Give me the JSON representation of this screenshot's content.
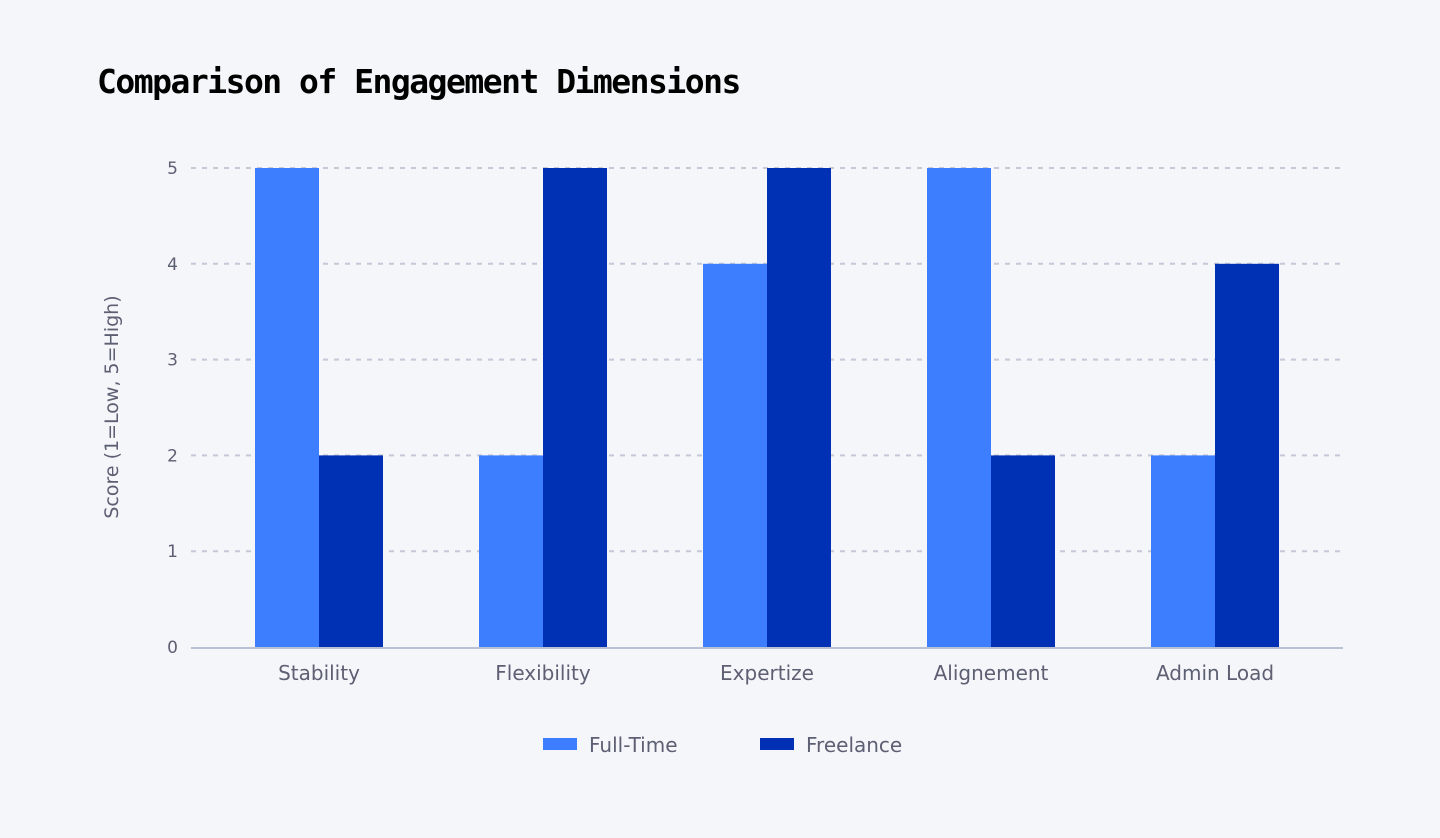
{
  "chart_data": {
    "type": "bar",
    "title": "Comparison of Engagement Dimensions",
    "xlabel": "",
    "ylabel": "Score (1=Low, 5=High)",
    "ylim": [
      0,
      5
    ],
    "yticks": [
      "0",
      "1",
      "2",
      "3",
      "4",
      "5"
    ],
    "grid": true,
    "legend_position": "bottom",
    "categories": [
      "Stability",
      "Flexibility",
      "Expertize",
      "Alignement",
      "Admin Load"
    ],
    "series": [
      {
        "name": "Full-Time",
        "color": "#3d7eff",
        "values": [
          5,
          2,
          4,
          5,
          2
        ]
      },
      {
        "name": "Freelance",
        "color": "#0030b3",
        "values": [
          2,
          5,
          5,
          2,
          4
        ]
      }
    ]
  }
}
